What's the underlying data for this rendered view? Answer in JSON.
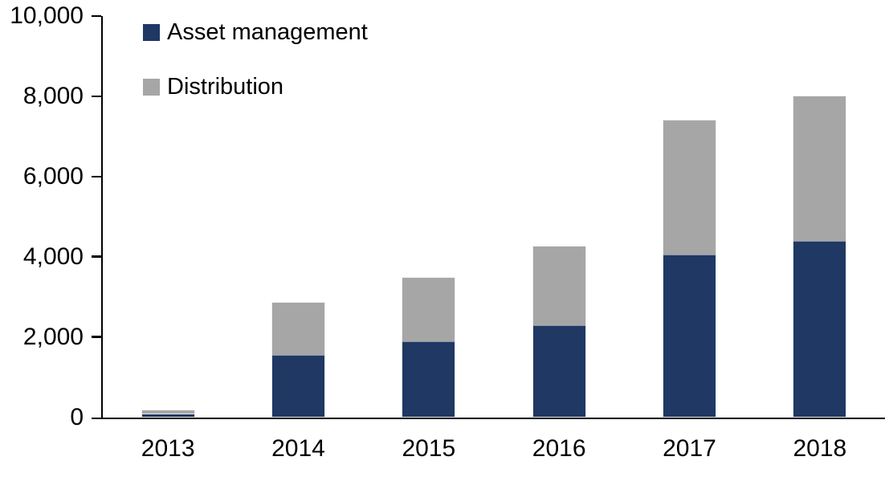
{
  "chart_data": {
    "type": "bar",
    "stacked": true,
    "title": "",
    "xlabel": "",
    "ylabel": "",
    "categories": [
      "2013",
      "2014",
      "2015",
      "2016",
      "2017",
      "2018"
    ],
    "series": [
      {
        "name": "Asset management",
        "color": "#1f3864",
        "values": [
          80,
          1550,
          1900,
          2300,
          4050,
          4400
        ]
      },
      {
        "name": "Distribution",
        "color": "#a6a6a6",
        "values": [
          100,
          1300,
          1580,
          1950,
          3350,
          3600
        ]
      }
    ],
    "totals": [
      180,
      2850,
      3480,
      4250,
      7400,
      8000
    ],
    "ylim": [
      0,
      10000
    ],
    "ytick_interval": 2000,
    "ytick_labels": [
      "0",
      "2,000",
      "4,000",
      "6,000",
      "8,000",
      "10,000"
    ],
    "grid": false,
    "legend_position": "top-left-inside",
    "axis_color": "#000000",
    "background_color": "#ffffff"
  }
}
